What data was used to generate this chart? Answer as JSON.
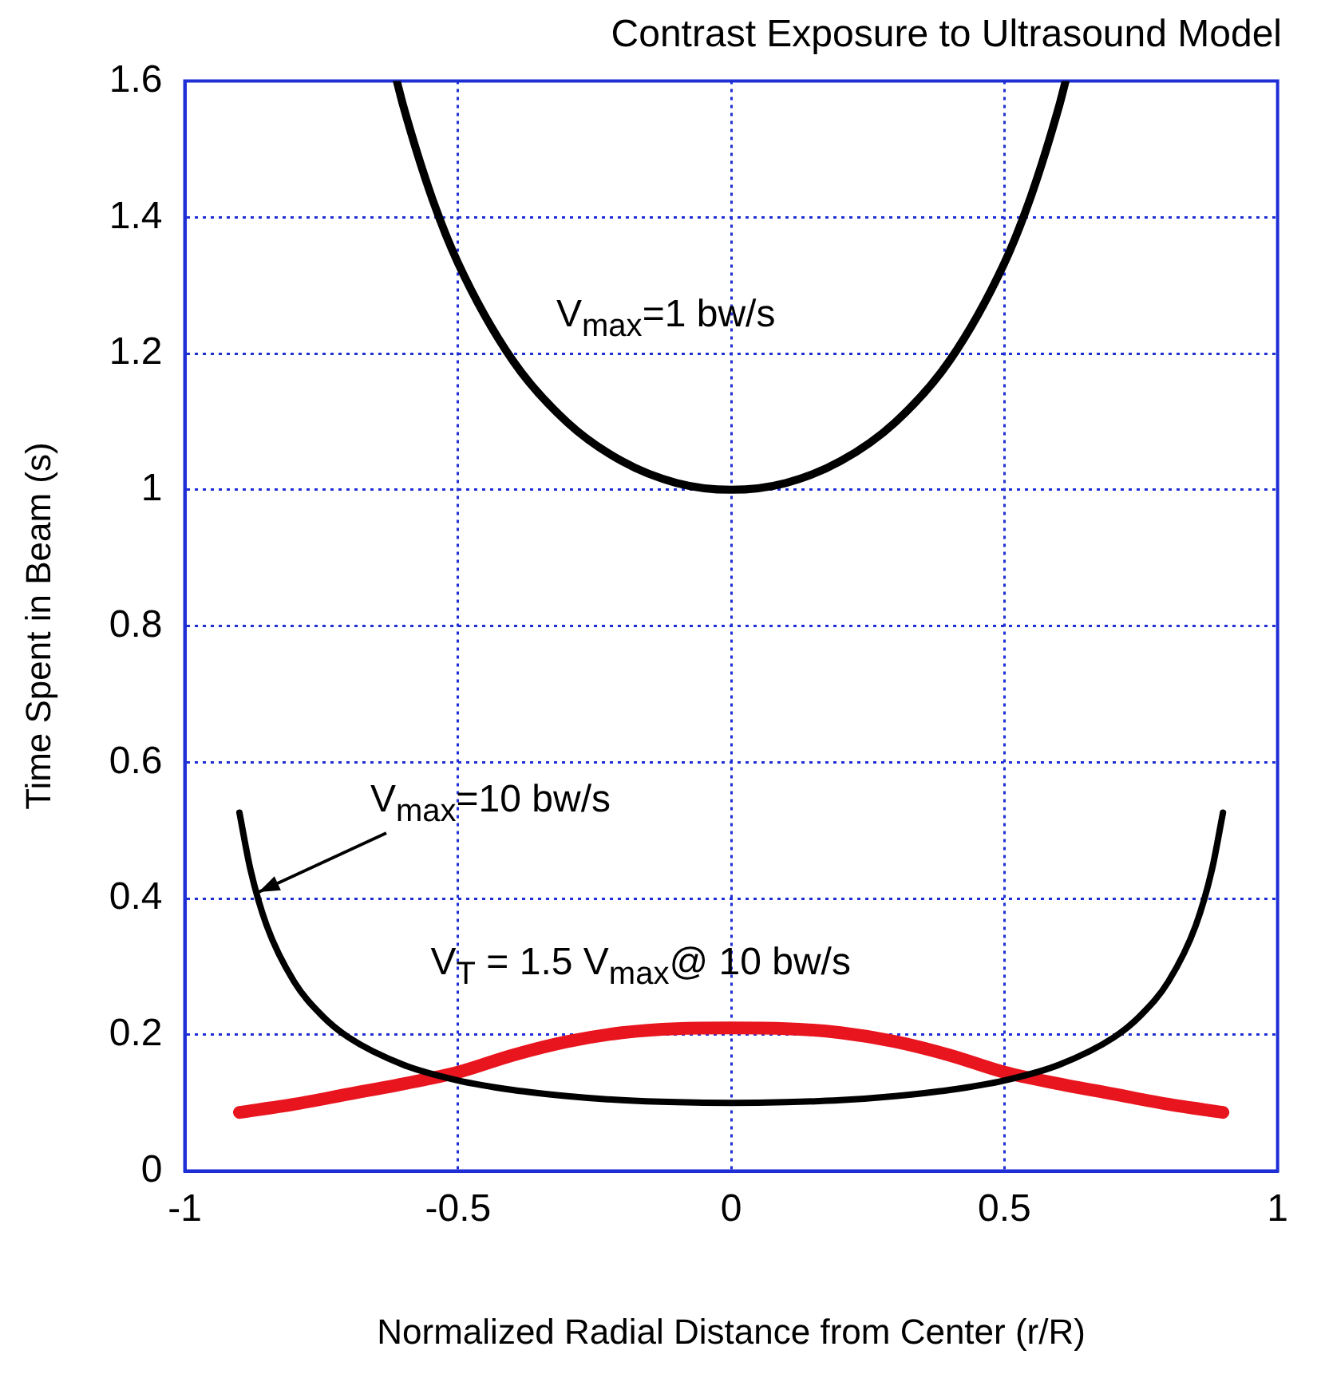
{
  "chart_data": {
    "type": "line",
    "title": "Contrast Exposure to Ultrasound Model",
    "xlabel": "Normalized Radial Distance from Center (r/R)",
    "ylabel": "Time Spent in Beam (s)",
    "xlim": [
      -1,
      1
    ],
    "xticks": [
      -1,
      -0.5,
      0,
      0.5,
      1
    ],
    "ylim": [
      0,
      1.6
    ],
    "yticks": [
      0,
      0.2,
      0.4,
      0.6,
      0.8,
      1,
      1.2,
      1.4,
      1.6
    ],
    "grid": true,
    "legend": false,
    "marker": "none",
    "line_style": "solid",
    "series": [
      {
        "color": "#000000",
        "x": [
          -0.612,
          -0.6,
          -0.55,
          -0.5,
          -0.4,
          -0.3,
          -0.2,
          -0.1,
          0,
          0.1,
          0.2,
          0.3,
          0.4,
          0.5,
          0.55,
          0.6,
          0.612
        ],
        "values": [
          1.6,
          1.563,
          1.434,
          1.333,
          1.19,
          1.099,
          1.042,
          1.01,
          1,
          1.01,
          1.042,
          1.099,
          1.19,
          1.333,
          1.434,
          1.563,
          1.6
        ]
      },
      {
        "color": "#000000",
        "x": [
          -0.9,
          -0.88,
          -0.85,
          -0.8,
          -0.75,
          -0.7,
          -0.6,
          -0.5,
          -0.4,
          -0.3,
          -0.2,
          -0.1,
          0,
          0.1,
          0.2,
          0.3,
          0.4,
          0.5,
          0.6,
          0.7,
          0.75,
          0.8,
          0.85,
          0.88,
          0.9
        ],
        "values": [
          0.526,
          0.443,
          0.36,
          0.278,
          0.229,
          0.196,
          0.156,
          0.133,
          0.119,
          0.11,
          0.104,
          0.101,
          0.1,
          0.101,
          0.104,
          0.11,
          0.119,
          0.133,
          0.156,
          0.196,
          0.229,
          0.278,
          0.36,
          0.443,
          0.526
        ]
      },
      {
        "color": "#e8141e",
        "x": [
          -0.9,
          -0.8,
          -0.7,
          -0.6,
          -0.5,
          -0.4,
          -0.3,
          -0.2,
          -0.1,
          0,
          0.1,
          0.2,
          0.3,
          0.4,
          0.5,
          0.6,
          0.7,
          0.8,
          0.9
        ],
        "values": [
          0.086,
          0.098,
          0.113,
          0.128,
          0.145,
          0.17,
          0.19,
          0.203,
          0.209,
          0.21,
          0.209,
          0.203,
          0.19,
          0.17,
          0.145,
          0.128,
          0.113,
          0.098,
          0.086
        ]
      }
    ],
    "annotations": [
      "V$_{max}$=1 bw/s",
      {
        "text": "V$_{max}$=10 bw/s",
        "x": -0.865,
        "y": 0.41
      },
      "V$_{T}$ = 1.5 V$_{max}$@ 10 bw/s"
    ]
  }
}
